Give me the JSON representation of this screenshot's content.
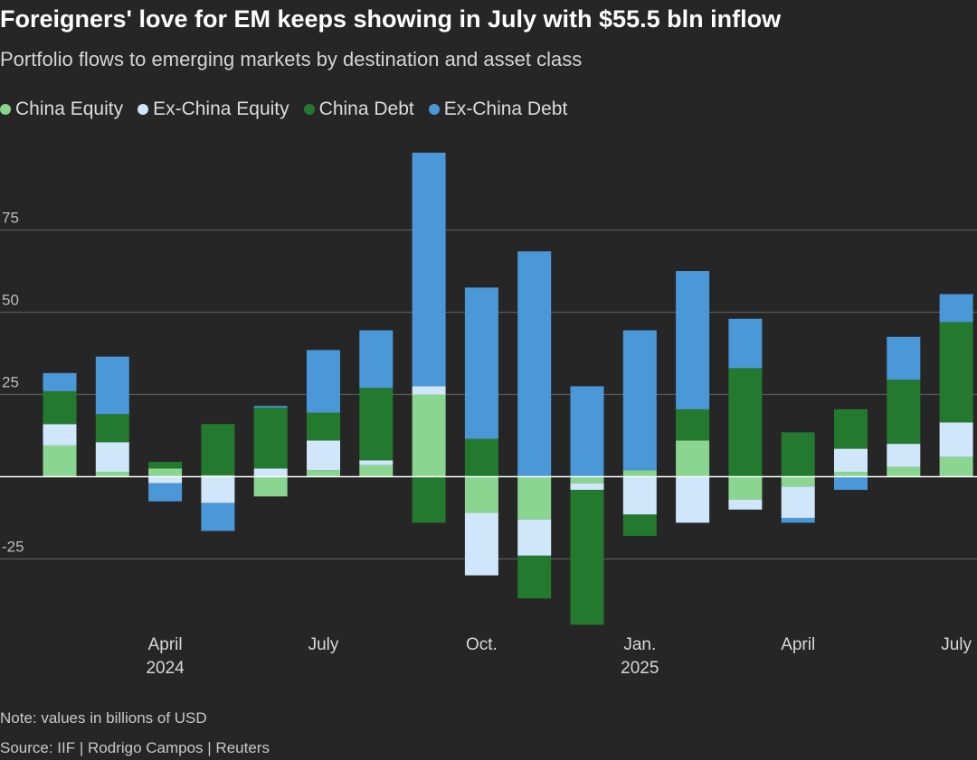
{
  "header": {
    "title": "Foreigners' love for EM keeps showing in July with $55.5 bln inflow",
    "subtitle": "Portfolio flows to emerging markets by destination and asset class"
  },
  "legend": [
    {
      "label": "China Equity",
      "color": "#8ad58f"
    },
    {
      "label": "Ex-China Equity",
      "color": "#cfe6fb"
    },
    {
      "label": "China Debt",
      "color": "#237a2f"
    },
    {
      "label": "Ex-China Debt",
      "color": "#4b98d8"
    }
  ],
  "footer": {
    "note": "Note: values in billions of USD",
    "source": "Source: IIF | Rodrigo Campos | Reuters"
  },
  "chart_data": {
    "type": "bar",
    "stacked": true,
    "title": "Foreigners' love for EM keeps showing in July with $55.5 bln inflow",
    "subtitle": "Portfolio flows to emerging markets by destination and asset class",
    "ylim": [
      -45,
      100
    ],
    "yticks": [
      -25,
      25,
      50,
      75
    ],
    "gridlines": true,
    "categories": [
      "2024-02",
      "2024-03",
      "2024-04",
      "2024-05",
      "2024-06",
      "2024-07",
      "2024-08",
      "2024-09",
      "2024-10",
      "2024-11",
      "2024-12",
      "2025-01",
      "2025-02",
      "2025-03",
      "2025-04",
      "2025-05",
      "2025-06",
      "2025-07"
    ],
    "x_tick_labels": [
      {
        "index": 2,
        "line1": "April",
        "line2": "2024"
      },
      {
        "index": 5,
        "line1": "July",
        "line2": ""
      },
      {
        "index": 8,
        "line1": "Oct.",
        "line2": ""
      },
      {
        "index": 11,
        "line1": "Jan.",
        "line2": "2025"
      },
      {
        "index": 14,
        "line1": "April",
        "line2": ""
      },
      {
        "index": 17,
        "line1": "July",
        "line2": ""
      }
    ],
    "series": [
      {
        "name": "China Equity",
        "color": "#8ad58f",
        "values": [
          9.5,
          1.5,
          2.5,
          0.5,
          -6,
          2,
          3.5,
          25,
          -11,
          -13,
          -2,
          2,
          11,
          -7,
          -3,
          1.5,
          3,
          6
        ]
      },
      {
        "name": "Ex-China Equity",
        "color": "#cfe6fb",
        "values": [
          6.5,
          9,
          -2,
          -8,
          2.5,
          9,
          1.5,
          2.5,
          -19,
          -11,
          -2,
          -11.5,
          -14,
          -3,
          -9.5,
          7,
          7,
          10.5
        ]
      },
      {
        "name": "China Debt",
        "color": "#237a2f",
        "values": [
          10,
          8.5,
          2,
          15.5,
          18.5,
          8.5,
          22,
          -14,
          11.5,
          -13,
          -41,
          -6.5,
          9.5,
          33,
          13.5,
          12,
          19.5,
          30.5
        ]
      },
      {
        "name": "Ex-China Debt",
        "color": "#4b98d8",
        "values": [
          5.5,
          17.5,
          -5.5,
          -8.5,
          0.5,
          19,
          17.5,
          71,
          46,
          68.5,
          27.5,
          42.5,
          42,
          15,
          -1.5,
          -4,
          13,
          8.5
        ]
      }
    ],
    "annotations": [
      "Note: values in billions of USD"
    ]
  }
}
